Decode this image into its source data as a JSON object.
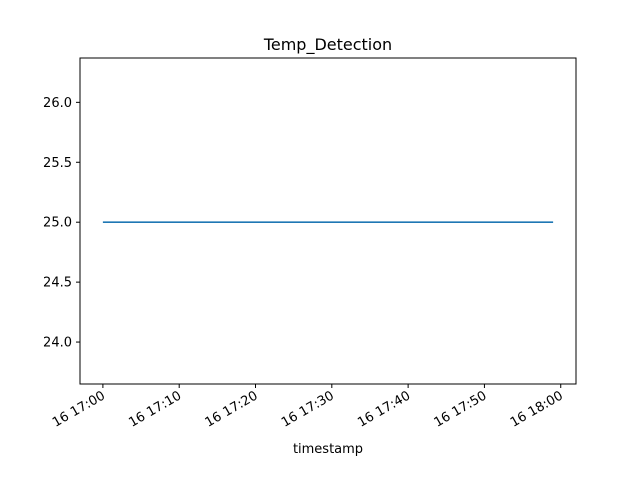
{
  "chart_data": {
    "type": "line",
    "title": "Temp_Detection",
    "xlabel": "timestamp",
    "ylabel": "",
    "x_ticks": [
      "16 17:00",
      "16 17:10",
      "16 17:20",
      "16 17:30",
      "16 17:40",
      "16 17:50",
      "16 18:00"
    ],
    "y_ticks": [
      "24.0",
      "24.5",
      "25.0",
      "25.5",
      "26.0"
    ],
    "xlim": [
      "16 16:57",
      "16 18:02"
    ],
    "ylim": [
      23.65,
      26.37
    ],
    "grid": false,
    "series": [
      {
        "color": "#1f77b4",
        "x": [
          "16 17:00",
          "16 17:59"
        ],
        "y": [
          25.0,
          25.0
        ]
      }
    ]
  }
}
